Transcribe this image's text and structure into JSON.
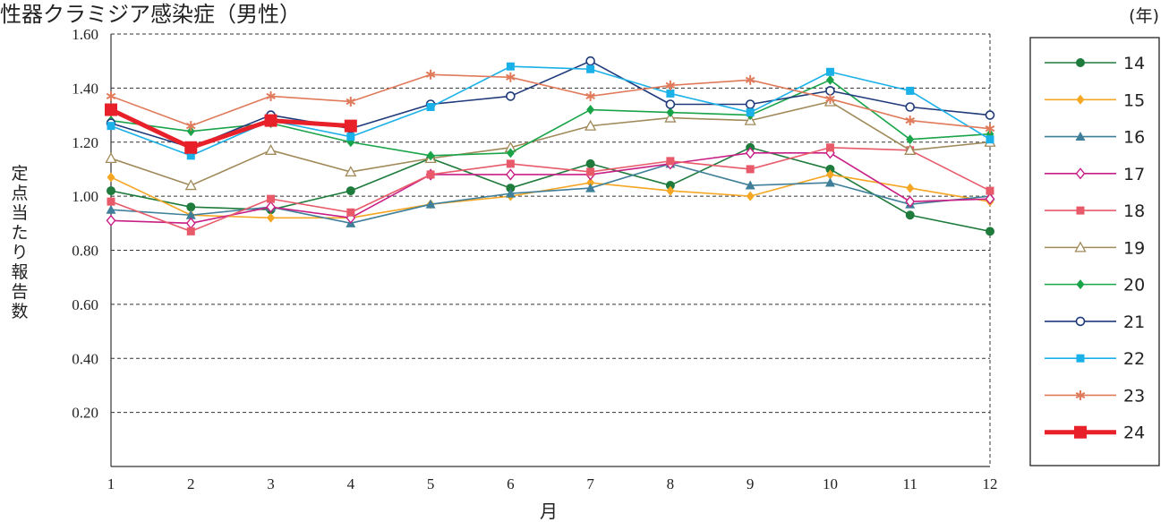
{
  "chart_data": {
    "type": "line",
    "title": "性器クラミジア感染症（男性）",
    "ylabel": "定点当たり報告数",
    "xlabel": "月",
    "legend_title": "(年)",
    "legend_position": "right",
    "grid": "horizontal dashed",
    "categories": [
      "1",
      "2",
      "3",
      "4",
      "5",
      "6",
      "7",
      "8",
      "9",
      "10",
      "11",
      "12"
    ],
    "y_ticks": [
      "0.20",
      "0.40",
      "0.60",
      "0.80",
      "1.00",
      "1.20",
      "1.40",
      "1.60"
    ],
    "ylim": [
      0,
      1.6
    ],
    "series": [
      {
        "name": "14",
        "color": "#1e7b3c",
        "marker": "circle-filled",
        "values": [
          1.02,
          0.96,
          0.95,
          1.02,
          1.14,
          1.03,
          1.12,
          1.04,
          1.18,
          1.1,
          0.93,
          0.87
        ]
      },
      {
        "name": "15",
        "color": "#f5a623",
        "marker": "diamond-filled",
        "values": [
          1.07,
          0.93,
          0.92,
          0.92,
          0.97,
          1.0,
          1.05,
          1.02,
          1.0,
          1.08,
          1.03,
          0.98
        ]
      },
      {
        "name": "16",
        "color": "#3f7f99",
        "marker": "triangle-filled",
        "values": [
          0.95,
          0.93,
          0.96,
          0.9,
          0.97,
          1.01,
          1.03,
          1.12,
          1.04,
          1.05,
          0.97,
          1.0
        ]
      },
      {
        "name": "17",
        "color": "#c81e86",
        "marker": "diamond-open",
        "values": [
          0.91,
          0.9,
          0.96,
          0.92,
          1.08,
          1.08,
          1.08,
          1.12,
          1.16,
          1.16,
          0.98,
          0.99
        ]
      },
      {
        "name": "18",
        "color": "#e85a6a",
        "marker": "square-filled",
        "values": [
          0.98,
          0.87,
          0.99,
          0.94,
          1.08,
          1.12,
          1.09,
          1.13,
          1.1,
          1.18,
          1.17,
          1.02
        ]
      },
      {
        "name": "19",
        "color": "#a08a5a",
        "marker": "triangle-open",
        "values": [
          1.14,
          1.04,
          1.17,
          1.09,
          1.14,
          1.18,
          1.26,
          1.29,
          1.28,
          1.35,
          1.17,
          1.2
        ]
      },
      {
        "name": "20",
        "color": "#1aa44a",
        "marker": "diamond-filled",
        "values": [
          1.28,
          1.24,
          1.27,
          1.2,
          1.15,
          1.16,
          1.32,
          1.31,
          1.3,
          1.43,
          1.21,
          1.23
        ]
      },
      {
        "name": "21",
        "color": "#1f3a7a",
        "marker": "circle-open",
        "values": [
          1.27,
          1.18,
          1.3,
          1.25,
          1.34,
          1.37,
          1.5,
          1.34,
          1.34,
          1.39,
          1.33,
          1.3
        ]
      },
      {
        "name": "22",
        "color": "#1ab0e8",
        "marker": "square-filled",
        "values": [
          1.26,
          1.15,
          1.28,
          1.22,
          1.33,
          1.48,
          1.47,
          1.38,
          1.31,
          1.46,
          1.39,
          1.21
        ]
      },
      {
        "name": "23",
        "color": "#e07a5a",
        "marker": "asterisk",
        "values": [
          1.37,
          1.26,
          1.37,
          1.35,
          1.45,
          1.44,
          1.37,
          1.41,
          1.43,
          1.36,
          1.28,
          1.25
        ]
      },
      {
        "name": "24",
        "color": "#e8202a",
        "marker": "square-filled",
        "bold": true,
        "values": [
          1.32,
          1.18,
          1.28,
          1.26,
          null,
          null,
          null,
          null,
          null,
          null,
          null,
          null
        ]
      }
    ]
  }
}
